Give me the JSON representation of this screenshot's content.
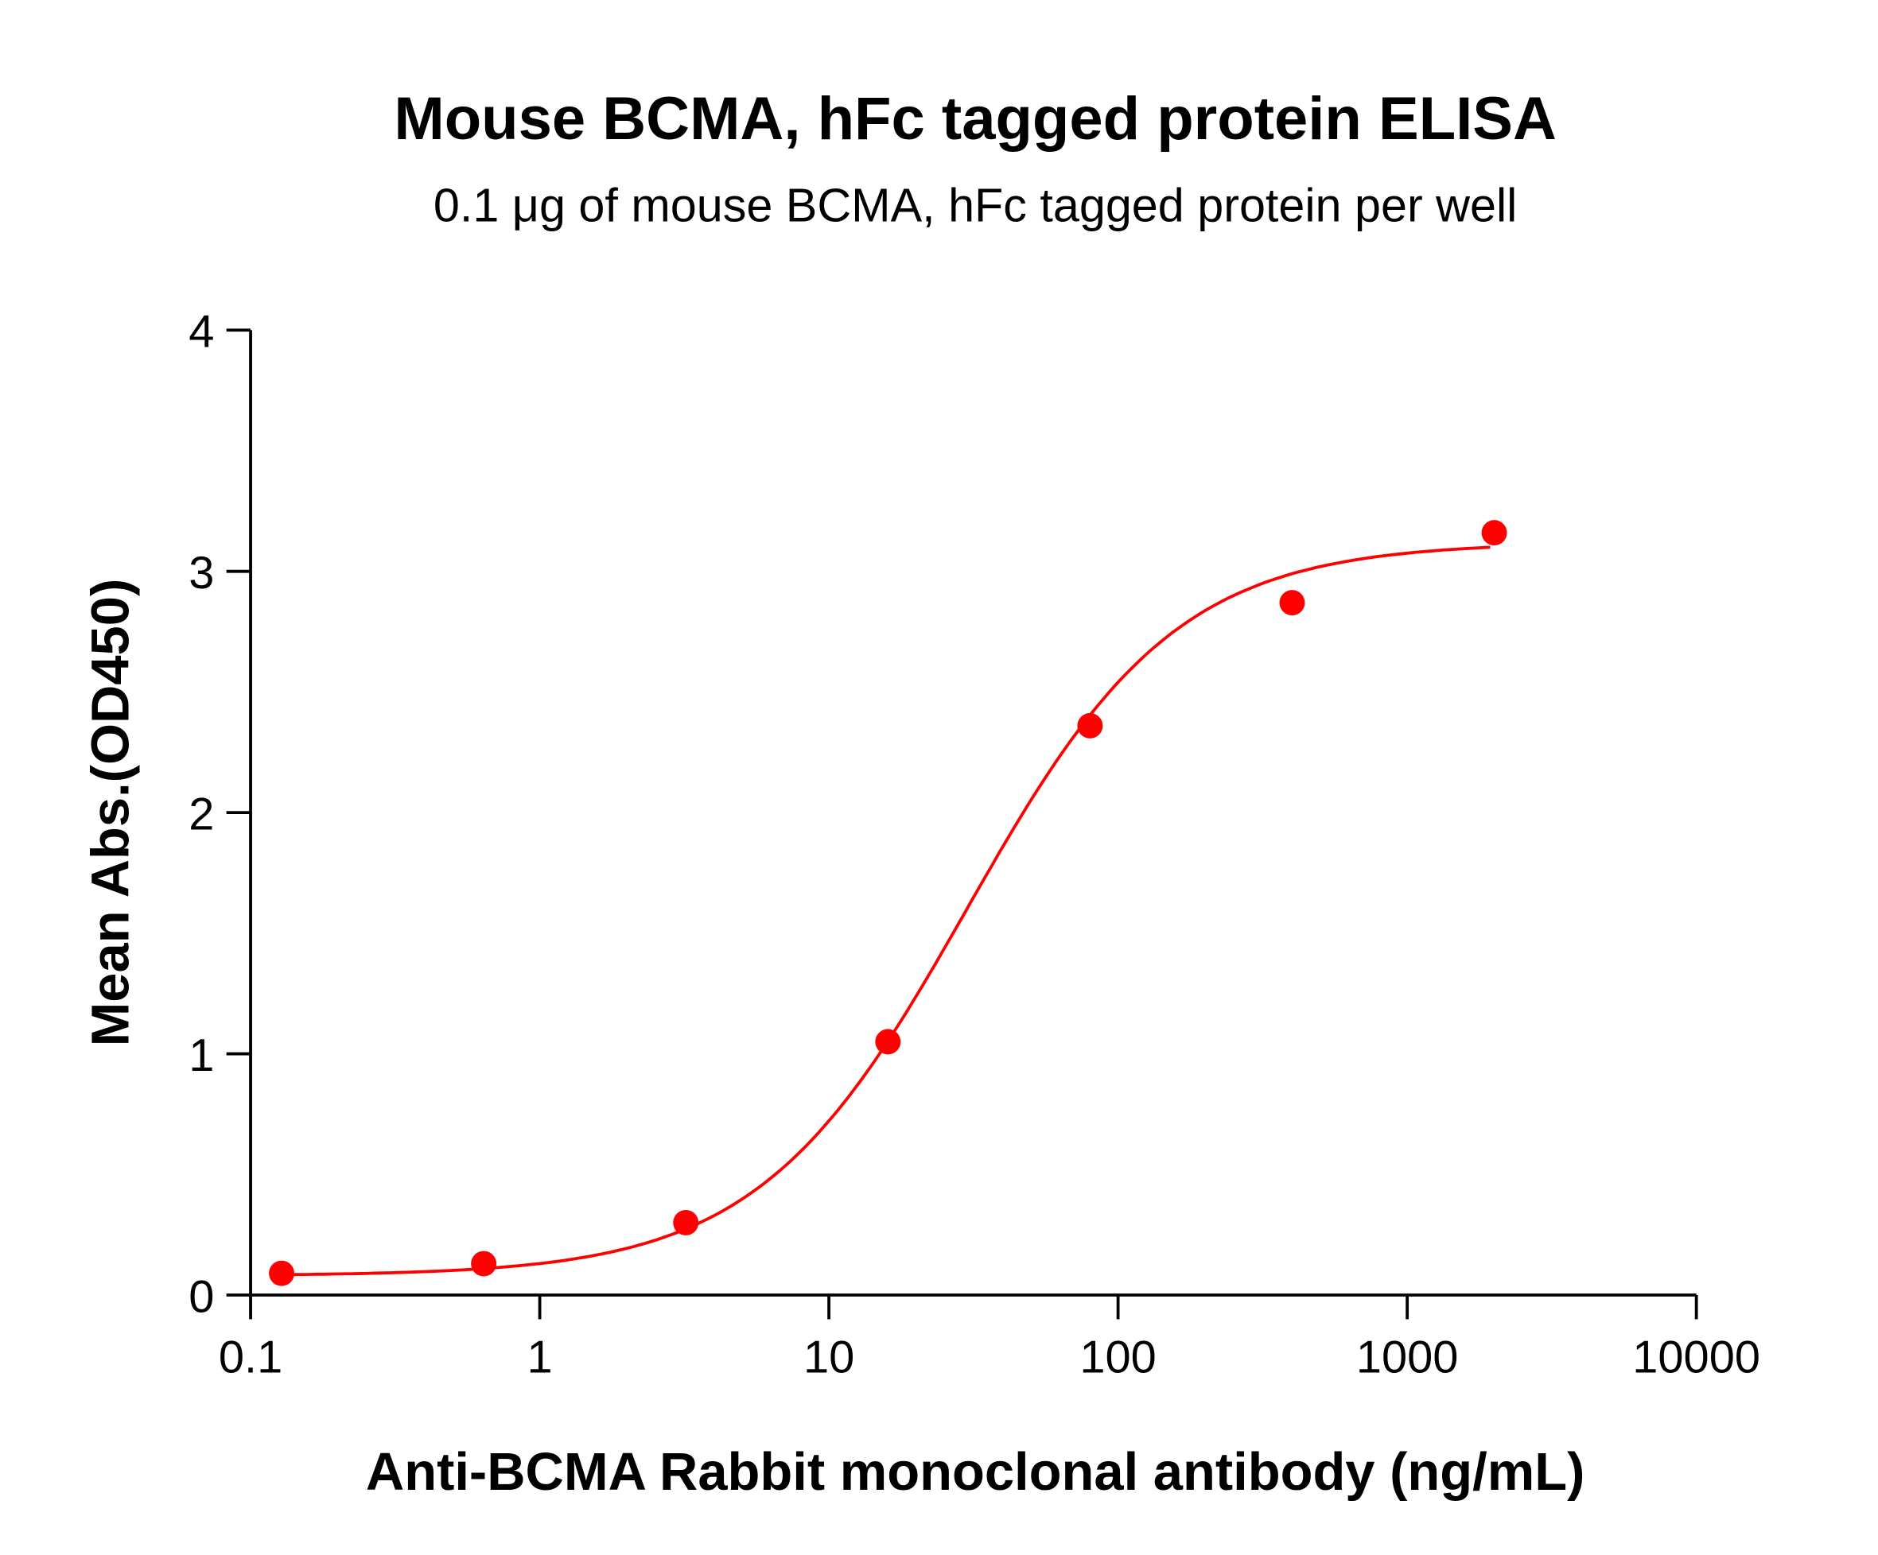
{
  "chart_data": {
    "type": "scatter",
    "title": "Mouse BCMA, hFc tagged protein ELISA",
    "subtitle": "0.1 μg of mouse BCMA, hFc tagged protein per well",
    "xlabel": "Anti-BCMA Rabbit monoclonal antibody (ng/mL)",
    "ylabel": "Mean Abs.(OD450)",
    "x_scale": "log",
    "xlim": [
      0.1,
      10000
    ],
    "ylim": [
      0,
      4
    ],
    "x_ticks": [
      "0.1",
      "1",
      "10",
      "100",
      "1000",
      "10000"
    ],
    "y_ticks": [
      "0",
      "1",
      "2",
      "3",
      "4"
    ],
    "grid": false,
    "fit_curve": "sigmoidal dose-response",
    "color": "#ff0000",
    "series": [
      {
        "x": [
          0.128,
          0.64,
          3.2,
          16,
          80,
          400,
          2000
        ],
        "y": [
          0.09,
          0.13,
          0.3,
          1.05,
          2.36,
          2.87,
          3.16
        ]
      }
    ]
  }
}
